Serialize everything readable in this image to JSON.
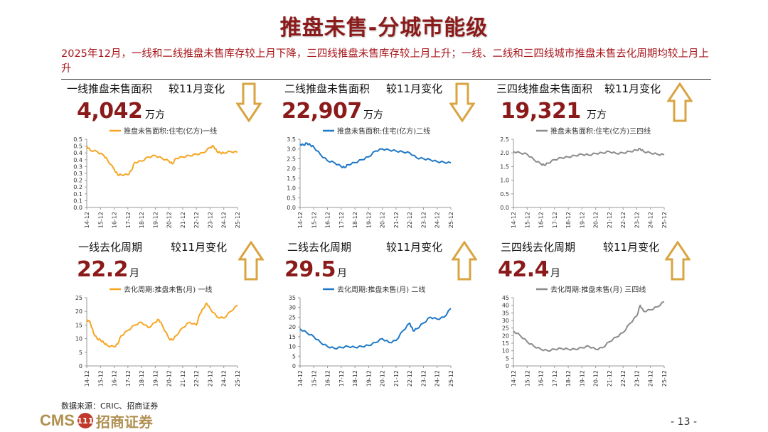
{
  "title": "推盘未售-分城市能级",
  "summary": "2025年12月，一线和二线推盘未售库存较上月下降，三四线推盘未售库存较上月上升；一线、二线和三四线城市推盘未售去化周期均较上月上升",
  "compare_label": "较11月变化",
  "panels": [
    {
      "label": "一线推盘未售面积",
      "value": "4,042",
      "unit": "万方",
      "direction": "down"
    },
    {
      "label": "二线推盘未售面积",
      "value": "22,907",
      "unit": "万方",
      "direction": "down"
    },
    {
      "label": "三四线推盘未售面积",
      "value": "19,321",
      "unit": "万方",
      "direction": "up"
    },
    {
      "label": "一线去化周期",
      "value": "22.2",
      "unit": "月",
      "direction": "up"
    },
    {
      "label": "二线去化周期",
      "value": "29.5",
      "unit": "月",
      "direction": "up"
    },
    {
      "label": "三四线去化周期",
      "value": "42.4",
      "unit": "月",
      "direction": "up"
    }
  ],
  "source": "数据来源：CRIC、招商证券",
  "logo": {
    "latin": "CMS",
    "badge": "111",
    "chinese": "招商证券"
  },
  "page_number": "- 13 -",
  "colors": {
    "tier1": "#f5a623",
    "tier2": "#1f78c8",
    "tier3": "#8c8c8c",
    "title": "#8b1a1a",
    "summary": "#a8161b",
    "arrow": "#d9a441"
  },
  "chart_data": [
    {
      "type": "line",
      "series": [
        {
          "name": "推盘未售面积:住宅(亿方)一线",
          "color": "#f5a623"
        }
      ],
      "x_start": "2014-12",
      "x_end": "2025-12",
      "x_ticks": [
        "14-12",
        "15-12",
        "16-12",
        "17-12",
        "18-12",
        "19-12",
        "20-12",
        "21-12",
        "22-12",
        "23-12",
        "24-12",
        "25-12"
      ],
      "ylim": [
        0,
        0.5
      ],
      "y_ticks": [
        "0.0",
        "0.1",
        "0.1",
        "0.2",
        "0.2",
        "0.3",
        "0.3",
        "0.4",
        "0.4",
        "0.5",
        "0.5"
      ],
      "y_tick_values": [
        0,
        0.05,
        0.1,
        0.15,
        0.2,
        0.25,
        0.3,
        0.35,
        0.4,
        0.45,
        0.5
      ],
      "key_points": [
        [
          "2014-12",
          0.45
        ],
        [
          "2015-03",
          0.42
        ],
        [
          "2015-09",
          0.41
        ],
        [
          "2016-03",
          0.38
        ],
        [
          "2016-06",
          0.35
        ],
        [
          "2016-12",
          0.28
        ],
        [
          "2017-03",
          0.24
        ],
        [
          "2017-06",
          0.24
        ],
        [
          "2017-12",
          0.24
        ],
        [
          "2018-03",
          0.27
        ],
        [
          "2018-06",
          0.33
        ],
        [
          "2018-12",
          0.34
        ],
        [
          "2019-06",
          0.37
        ],
        [
          "2019-12",
          0.38
        ],
        [
          "2020-06",
          0.36
        ],
        [
          "2020-12",
          0.34
        ],
        [
          "2021-03",
          0.32
        ],
        [
          "2021-06",
          0.36
        ],
        [
          "2021-12",
          0.37
        ],
        [
          "2022-06",
          0.38
        ],
        [
          "2022-12",
          0.39
        ],
        [
          "2023-06",
          0.4
        ],
        [
          "2023-12",
          0.44
        ],
        [
          "2024-03",
          0.45
        ],
        [
          "2024-06",
          0.41
        ],
        [
          "2024-09",
          0.4
        ],
        [
          "2024-12",
          0.4
        ],
        [
          "2025-06",
          0.41
        ],
        [
          "2025-12",
          0.404
        ]
      ]
    },
    {
      "type": "line",
      "series": [
        {
          "name": "推盘未售面积:住宅(亿方)二线",
          "color": "#1f78c8"
        }
      ],
      "x_start": "2014-12",
      "x_end": "2025-12",
      "x_ticks": [
        "14-12",
        "15-12",
        "16-12",
        "17-12",
        "18-12",
        "19-12",
        "20-12",
        "21-12",
        "22-12",
        "23-12",
        "24-12",
        "25-12"
      ],
      "ylim": [
        0,
        3.5
      ],
      "y_ticks": [
        "0.0",
        "0.5",
        "1.0",
        "1.5",
        "2.0",
        "2.5",
        "3.0",
        "3.5"
      ],
      "y_tick_values": [
        0,
        0.5,
        1.0,
        1.5,
        2.0,
        2.5,
        3.0,
        3.5
      ],
      "key_points": [
        [
          "2014-12",
          3.25
        ],
        [
          "2015-03",
          3.2
        ],
        [
          "2015-06",
          3.3
        ],
        [
          "2015-09",
          3.2
        ],
        [
          "2015-12",
          3.1
        ],
        [
          "2016-06",
          2.7
        ],
        [
          "2016-12",
          2.4
        ],
        [
          "2017-06",
          2.3
        ],
        [
          "2017-12",
          2.1
        ],
        [
          "2018-03",
          2.05
        ],
        [
          "2018-06",
          2.2
        ],
        [
          "2018-12",
          2.3
        ],
        [
          "2019-06",
          2.45
        ],
        [
          "2019-12",
          2.6
        ],
        [
          "2020-06",
          2.9
        ],
        [
          "2020-12",
          3.0
        ],
        [
          "2021-06",
          2.95
        ],
        [
          "2021-12",
          2.9
        ],
        [
          "2022-06",
          2.85
        ],
        [
          "2022-12",
          2.8
        ],
        [
          "2023-06",
          2.55
        ],
        [
          "2023-12",
          2.5
        ],
        [
          "2024-06",
          2.45
        ],
        [
          "2024-12",
          2.35
        ],
        [
          "2025-06",
          2.32
        ],
        [
          "2025-12",
          2.29
        ]
      ]
    },
    {
      "type": "line",
      "series": [
        {
          "name": "推盘未售面积:住宅(亿方)三四线",
          "color": "#8c8c8c"
        }
      ],
      "x_start": "2014-12",
      "x_end": "2025-12",
      "x_ticks": [
        "14-12",
        "15-12",
        "16-12",
        "17-12",
        "18-12",
        "19-12",
        "20-12",
        "21-12",
        "22-12",
        "23-12",
        "24-12",
        "25-12"
      ],
      "ylim": [
        0,
        2.5
      ],
      "y_ticks": [
        "0.0",
        "0.5",
        "1.0",
        "1.5",
        "2.0",
        "2.5"
      ],
      "y_tick_values": [
        0,
        0.5,
        1.0,
        1.5,
        2.0,
        2.5
      ],
      "key_points": [
        [
          "2014-12",
          2.05
        ],
        [
          "2015-06",
          2.0
        ],
        [
          "2015-12",
          1.95
        ],
        [
          "2016-06",
          1.75
        ],
        [
          "2016-12",
          1.6
        ],
        [
          "2017-03",
          1.55
        ],
        [
          "2017-06",
          1.62
        ],
        [
          "2017-12",
          1.75
        ],
        [
          "2018-06",
          1.82
        ],
        [
          "2018-12",
          1.85
        ],
        [
          "2019-06",
          1.9
        ],
        [
          "2019-12",
          1.95
        ],
        [
          "2020-06",
          1.92
        ],
        [
          "2020-12",
          1.98
        ],
        [
          "2021-06",
          2.0
        ],
        [
          "2021-12",
          2.05
        ],
        [
          "2022-06",
          1.98
        ],
        [
          "2022-12",
          2.0
        ],
        [
          "2023-06",
          2.05
        ],
        [
          "2023-12",
          2.1
        ],
        [
          "2024-03",
          2.15
        ],
        [
          "2024-06",
          2.05
        ],
        [
          "2024-12",
          2.0
        ],
        [
          "2025-06",
          1.95
        ],
        [
          "2025-12",
          1.93
        ]
      ]
    },
    {
      "type": "line",
      "series": [
        {
          "name": "去化周期:推盘未售(月) 一线",
          "color": "#f5a623"
        }
      ],
      "x_start": "2014-12",
      "x_end": "2025-12",
      "x_ticks": [
        "14-12",
        "15-12",
        "16-12",
        "17-12",
        "18-12",
        "19-12",
        "20-12",
        "21-12",
        "22-12",
        "23-12",
        "24-12",
        "25-12"
      ],
      "ylim": [
        0,
        25
      ],
      "y_ticks": [
        "0",
        "5",
        "10",
        "15",
        "20",
        "25"
      ],
      "y_tick_values": [
        0,
        5,
        10,
        15,
        20,
        25
      ],
      "key_points": [
        [
          "2014-12",
          17
        ],
        [
          "2015-03",
          16
        ],
        [
          "2015-06",
          12
        ],
        [
          "2015-09",
          10
        ],
        [
          "2015-12",
          9.5
        ],
        [
          "2016-03",
          8.5
        ],
        [
          "2016-06",
          7.5
        ],
        [
          "2016-12",
          7
        ],
        [
          "2017-03",
          8
        ],
        [
          "2017-06",
          11
        ],
        [
          "2017-12",
          13
        ],
        [
          "2018-06",
          15
        ],
        [
          "2018-12",
          16
        ],
        [
          "2019-06",
          14
        ],
        [
          "2019-12",
          16
        ],
        [
          "2020-03",
          17
        ],
        [
          "2020-06",
          15
        ],
        [
          "2020-12",
          10
        ],
        [
          "2021-03",
          9.5
        ],
        [
          "2021-06",
          11
        ],
        [
          "2021-12",
          14
        ],
        [
          "2022-06",
          16
        ],
        [
          "2022-12",
          15
        ],
        [
          "2023-03",
          19
        ],
        [
          "2023-06",
          21
        ],
        [
          "2023-09",
          23
        ],
        [
          "2023-12",
          21
        ],
        [
          "2024-06",
          18
        ],
        [
          "2024-12",
          17.5
        ],
        [
          "2025-06",
          20
        ],
        [
          "2025-12",
          22.2
        ]
      ]
    },
    {
      "type": "line",
      "series": [
        {
          "name": "去化周期:推盘未售(月) 二线",
          "color": "#1f78c8"
        }
      ],
      "x_start": "2014-12",
      "x_end": "2025-12",
      "x_ticks": [
        "14-12",
        "15-12",
        "16-12",
        "17-12",
        "18-12",
        "19-12",
        "20-12",
        "21-12",
        "22-12",
        "23-12",
        "24-12",
        "25-12"
      ],
      "ylim": [
        0,
        35
      ],
      "y_ticks": [
        "0",
        "5",
        "10",
        "15",
        "20",
        "25",
        "30",
        "35"
      ],
      "y_tick_values": [
        0,
        5,
        10,
        15,
        20,
        25,
        30,
        35
      ],
      "key_points": [
        [
          "2014-12",
          19
        ],
        [
          "2015-06",
          17
        ],
        [
          "2015-12",
          15
        ],
        [
          "2016-06",
          12
        ],
        [
          "2016-12",
          10
        ],
        [
          "2017-06",
          9
        ],
        [
          "2017-12",
          9.5
        ],
        [
          "2018-06",
          10
        ],
        [
          "2018-12",
          9.5
        ],
        [
          "2019-06",
          10
        ],
        [
          "2019-12",
          10.5
        ],
        [
          "2020-06",
          12
        ],
        [
          "2020-12",
          14
        ],
        [
          "2021-06",
          12
        ],
        [
          "2021-12",
          13
        ],
        [
          "2022-06",
          18
        ],
        [
          "2022-12",
          22
        ],
        [
          "2023-03",
          18
        ],
        [
          "2023-06",
          19
        ],
        [
          "2023-12",
          22
        ],
        [
          "2024-06",
          25
        ],
        [
          "2024-12",
          24
        ],
        [
          "2025-06",
          25
        ],
        [
          "2025-12",
          29.5
        ]
      ]
    },
    {
      "type": "line",
      "series": [
        {
          "name": "去化周期:推盘未售(月) 三四线",
          "color": "#8c8c8c"
        }
      ],
      "x_start": "2014-12",
      "x_end": "2025-12",
      "x_ticks": [
        "14-12",
        "15-12",
        "16-12",
        "17-12",
        "18-12",
        "19-12",
        "20-12",
        "21-12",
        "22-12",
        "23-12",
        "24-12",
        "25-12"
      ],
      "ylim": [
        0,
        45
      ],
      "y_ticks": [
        "0",
        "5",
        "10",
        "15",
        "20",
        "25",
        "30",
        "35",
        "40",
        "45"
      ],
      "y_tick_values": [
        0,
        5,
        10,
        15,
        20,
        25,
        30,
        35,
        40,
        45
      ],
      "key_points": [
        [
          "2014-12",
          23
        ],
        [
          "2015-06",
          20
        ],
        [
          "2015-12",
          16
        ],
        [
          "2016-06",
          13
        ],
        [
          "2016-12",
          11
        ],
        [
          "2017-06",
          10
        ],
        [
          "2017-12",
          11
        ],
        [
          "2018-06",
          11.5
        ],
        [
          "2018-12",
          11
        ],
        [
          "2019-06",
          11
        ],
        [
          "2019-12",
          12
        ],
        [
          "2020-06",
          13
        ],
        [
          "2020-12",
          11
        ],
        [
          "2021-06",
          12
        ],
        [
          "2021-12",
          16
        ],
        [
          "2022-06",
          19
        ],
        [
          "2022-12",
          22
        ],
        [
          "2023-06",
          28
        ],
        [
          "2023-12",
          33
        ],
        [
          "2024-03",
          40
        ],
        [
          "2024-06",
          36
        ],
        [
          "2024-12",
          37
        ],
        [
          "2025-06",
          39
        ],
        [
          "2025-12",
          42.4
        ]
      ]
    }
  ]
}
